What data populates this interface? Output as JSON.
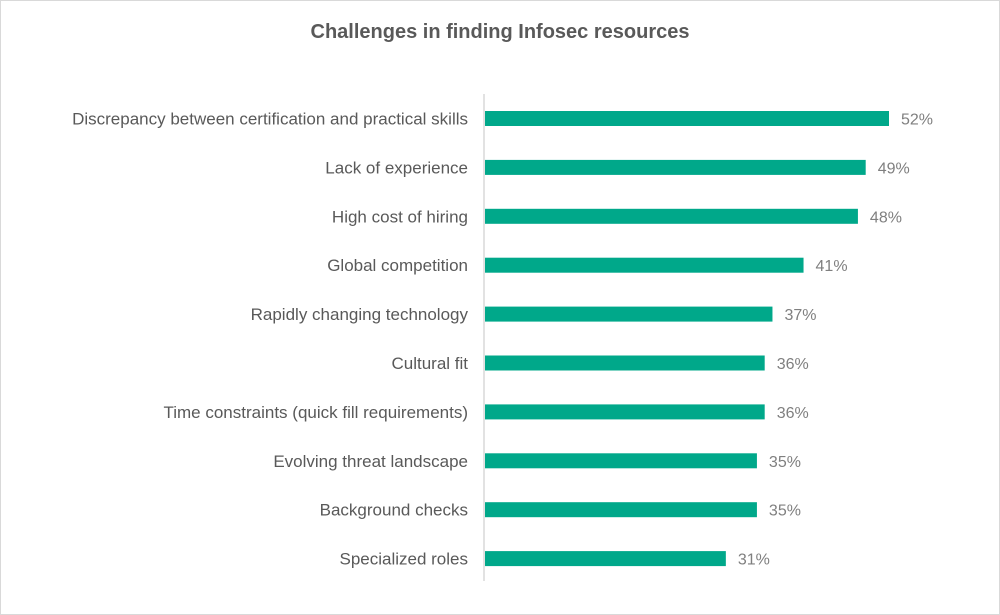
{
  "chart_data": {
    "type": "bar",
    "orientation": "horizontal",
    "title": "Challenges in finding Infosec resources",
    "xlabel": "",
    "ylabel": "",
    "xlim": [
      0,
      52
    ],
    "grid": false,
    "bar_color": "#00A88A",
    "categories": [
      "Discrepancy between certification and practical skills",
      "Lack of experience",
      "High cost of hiring",
      "Global competition",
      "Rapidly changing technology",
      "Cultural fit",
      "Time constraints (quick fill requirements)",
      "Evolving threat landscape",
      "Background checks",
      "Specialized roles"
    ],
    "values": [
      52,
      49,
      48,
      41,
      37,
      36,
      36,
      35,
      35,
      31
    ],
    "value_labels": [
      "52%",
      "49%",
      "48%",
      "41%",
      "37%",
      "36%",
      "36%",
      "35%",
      "35%",
      "31%"
    ]
  }
}
